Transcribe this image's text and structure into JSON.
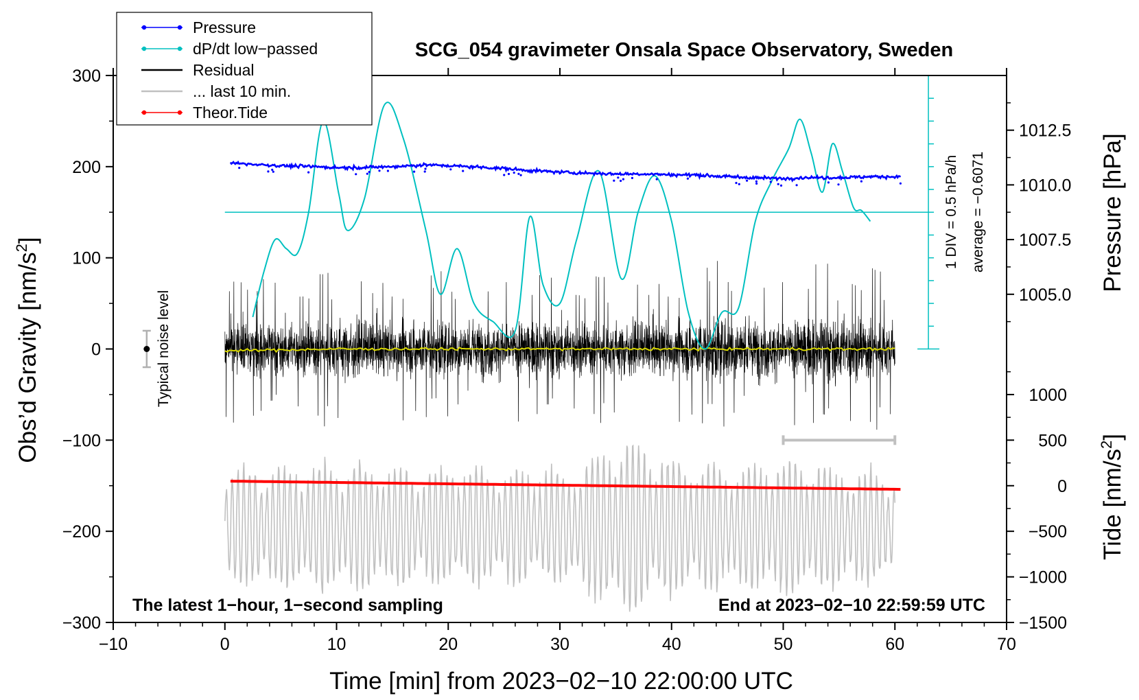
{
  "chart_data": {
    "type": "line",
    "title": "SCG_054 gravimeter Onsala Space Observatory, Sweden",
    "xlabel": "Time [min] from 2023−02−10 22:00:00 UTC",
    "ylabel_left_main": "Obs’d Gravity [nm/s",
    "ylabel_left_sup": "2",
    "ylabel_left_end": "]",
    "ylabel_right_upper": "Pressure [hPa]",
    "ylabel_right_lower_main": "Tide [nm/s",
    "ylabel_right_lower_sup": "2",
    "ylabel_right_lower_end": "]",
    "xlim": [
      -10,
      70
    ],
    "ylim": [
      -300,
      300
    ],
    "x_ticks": [
      -10,
      0,
      10,
      20,
      30,
      40,
      50,
      60,
      70
    ],
    "x_tick_labels": [
      "−10",
      "0",
      "10",
      "20",
      "30",
      "40",
      "50",
      "60",
      "70"
    ],
    "y_ticks": [
      -300,
      -200,
      -100,
      0,
      100,
      200,
      300
    ],
    "y_tick_labels": [
      "−300",
      "−200",
      "−100",
      "0",
      "100",
      "200",
      "300"
    ],
    "pressure_axis": {
      "ticks": [
        1005.0,
        1007.5,
        1010.0,
        1012.5
      ],
      "labels": [
        "1005.0",
        "1007.5",
        "1010.0",
        "1012.5"
      ],
      "g_at_1005": 60,
      "g_per_hpa": 24
    },
    "tide_axis": {
      "ticks": [
        -1500,
        -1000,
        -500,
        0,
        500,
        1000
      ],
      "labels": [
        "−1500",
        "−1000",
        "−500",
        "0",
        "500",
        "1000"
      ],
      "g_at_0": -150,
      "g_per_unit": 0.1
    },
    "legend": {
      "position": "top-left",
      "entries": [
        {
          "label": "Pressure",
          "color": "#0000ff",
          "marker": true
        },
        {
          "label": "dP/dt low−passed",
          "color": "#00c0c0",
          "marker": true
        },
        {
          "label": "Residual",
          "color": "#000000",
          "marker": false
        },
        {
          "label": "... last 10 min.",
          "color": "#c0c0c0",
          "marker": false
        },
        {
          "label": "Theor.Tide",
          "color": "#ff0000",
          "marker": true
        }
      ]
    },
    "annotations": {
      "bottom_left": "The latest 1−hour, 1−second sampling",
      "bottom_right": "End at 2023−02−10 22:59:59 UTC",
      "noise_label": "Typical noise level",
      "dpdt_scale": "1 DIV = 0.5 hPa/h",
      "dpdt_average": "average = −0.6071"
    },
    "typical_noise": {
      "x": -7,
      "center": 0,
      "half_range": 20
    },
    "dpdt_scale_bar": {
      "x": 63,
      "g_top": 300,
      "g_bottom": 0,
      "divisions": 12
    },
    "dpdt_average_line": {
      "x_start": 0,
      "x_end": 63,
      "g": 150
    },
    "last10_bar": {
      "x_start": 50,
      "x_end": 60,
      "g": -100
    },
    "series": [
      {
        "name": "Pressure",
        "color": "#0000ff",
        "x": [
          0.5,
          2,
          5,
          8,
          10,
          12,
          15,
          18,
          20,
          22,
          25,
          27,
          30,
          32,
          35,
          38,
          40,
          42,
          45,
          47,
          50,
          52,
          55,
          58,
          60.5
        ],
        "y": [
          204,
          203,
          201,
          200,
          199,
          199,
          200,
          202,
          201,
          200,
          198,
          196,
          194,
          193,
          192,
          192,
          191,
          191,
          189,
          188,
          187,
          188,
          188,
          189,
          189
        ]
      },
      {
        "name": "dP/dt low−passed",
        "color": "#00c0c0",
        "x": [
          2.5,
          3.5,
          4.5,
          5.5,
          6.5,
          7.5,
          8.8,
          10.2,
          11,
          12.5,
          14.3,
          16,
          18,
          19.3,
          20.8,
          22.3,
          24,
          26,
          27.3,
          28.5,
          30,
          31.5,
          33.5,
          35.5,
          37,
          38.5,
          40,
          41.5,
          43,
          44.5,
          46,
          47.5,
          49,
          50.5,
          51.5,
          52.5,
          53.5,
          54.4,
          55.3,
          56.3,
          57,
          57.8
        ],
        "y": [
          35,
          85,
          120,
          110,
          105,
          150,
          250,
          170,
          130,
          165,
          268,
          230,
          130,
          60,
          110,
          50,
          30,
          20,
          145,
          70,
          50,
          120,
          195,
          77,
          150,
          190,
          140,
          40,
          0,
          40,
          45,
          140,
          185,
          220,
          252,
          215,
          172,
          225,
          195,
          155,
          152,
          140
        ]
      },
      {
        "name": "Residual",
        "color": "#000000",
        "x_range": [
          0,
          60
        ],
        "envelope_x": [
          0,
          5,
          10,
          15,
          20,
          25,
          30,
          35,
          40,
          45,
          50,
          55,
          60
        ],
        "envelope_amp": [
          55,
          55,
          60,
          55,
          60,
          55,
          60,
          55,
          55,
          70,
          55,
          75,
          55
        ],
        "mean": 0
      },
      {
        "name": "Residual mean",
        "color": "#d8d800",
        "x": [
          0,
          10,
          20,
          30,
          40,
          50,
          60
        ],
        "y": [
          -2,
          0,
          0,
          0,
          0,
          0,
          0
        ]
      },
      {
        "name": "... last 10 min.",
        "color": "#c0c0c0",
        "x_range": [
          0,
          60
        ],
        "center": -195,
        "envelope_x": [
          0,
          10,
          20,
          30,
          33,
          36,
          40,
          45,
          50,
          55,
          60
        ],
        "envelope_amp": [
          65,
          70,
          65,
          60,
          80,
          100,
          75,
          65,
          75,
          65,
          60
        ]
      },
      {
        "name": "Theor.Tide",
        "color": "#ff0000",
        "x": [
          0.5,
          60.5
        ],
        "y": [
          -145,
          -154
        ]
      }
    ]
  }
}
